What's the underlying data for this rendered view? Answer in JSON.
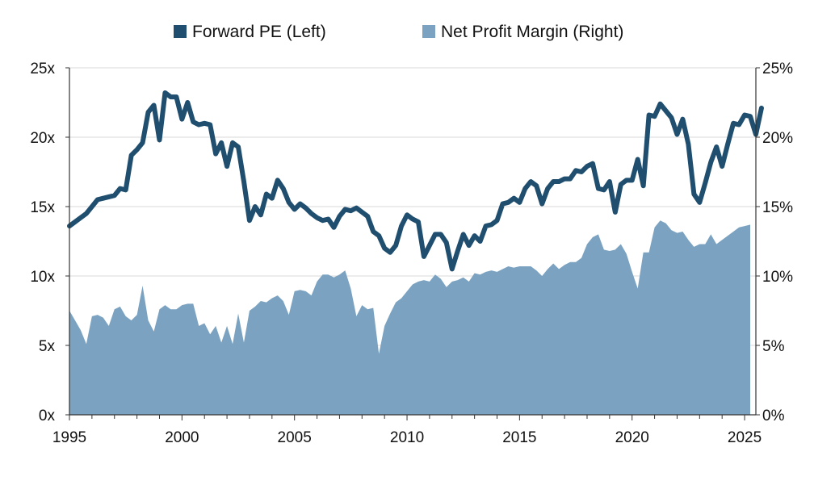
{
  "chart_data": {
    "type": "line+area",
    "title": "",
    "legend": {
      "placement": "top-center",
      "items": [
        {
          "label": "Forward PE (Left)",
          "color": "#1f4e6f",
          "kind": "line"
        },
        {
          "label": "Net Profit Margin (Right)",
          "color": "#7ba3c1",
          "kind": "area"
        }
      ]
    },
    "x_axis": {
      "range": [
        1995,
        2025.5
      ],
      "tick_labels": [
        "1995",
        "2000",
        "2005",
        "2010",
        "2015",
        "2020",
        "2025"
      ],
      "tick_values": [
        1995,
        2000,
        2005,
        2010,
        2015,
        2020,
        2025
      ],
      "minor_tick_values": [
        1996,
        1997,
        1998,
        1999,
        2001,
        2002,
        2003,
        2004,
        2006,
        2007,
        2008,
        2009,
        2011,
        2012,
        2013,
        2014,
        2016,
        2017,
        2018,
        2019,
        2021,
        2022,
        2023,
        2024
      ]
    },
    "y_left": {
      "range": [
        0,
        25
      ],
      "tick_values": [
        0,
        5,
        10,
        15,
        20,
        25
      ],
      "tick_labels": [
        "0x",
        "5x",
        "10x",
        "15x",
        "20x",
        "25x"
      ]
    },
    "y_right": {
      "range": [
        0,
        25
      ],
      "tick_values": [
        0,
        5,
        10,
        15,
        20,
        25
      ],
      "tick_labels": [
        "0%",
        "5%",
        "10%",
        "15%",
        "20%",
        "25%"
      ]
    },
    "gridlines": "horizontal",
    "series": [
      {
        "name": "Forward PE (Left)",
        "axis": "left",
        "type": "line",
        "color": "#1f4e6f",
        "points": [
          [
            1995.0,
            13.6
          ],
          [
            1995.25,
            13.9
          ],
          [
            1995.5,
            14.2
          ],
          [
            1995.75,
            14.5
          ],
          [
            1996.0,
            15.0
          ],
          [
            1996.25,
            15.5
          ],
          [
            1996.5,
            15.6
          ],
          [
            1996.75,
            15.7
          ],
          [
            1997.0,
            15.8
          ],
          [
            1997.25,
            16.3
          ],
          [
            1997.5,
            16.2
          ],
          [
            1997.75,
            18.7
          ],
          [
            1998.0,
            19.1
          ],
          [
            1998.25,
            19.6
          ],
          [
            1998.5,
            21.8
          ],
          [
            1998.75,
            22.3
          ],
          [
            1999.0,
            19.8
          ],
          [
            1999.25,
            23.2
          ],
          [
            1999.5,
            22.9
          ],
          [
            1999.75,
            22.9
          ],
          [
            2000.0,
            21.3
          ],
          [
            2000.25,
            22.5
          ],
          [
            2000.5,
            21.1
          ],
          [
            2000.75,
            20.9
          ],
          [
            2001.0,
            21.0
          ],
          [
            2001.25,
            20.9
          ],
          [
            2001.5,
            18.8
          ],
          [
            2001.75,
            19.6
          ],
          [
            2002.0,
            17.9
          ],
          [
            2002.25,
            19.6
          ],
          [
            2002.5,
            19.3
          ],
          [
            2002.75,
            16.8
          ],
          [
            2003.0,
            14.0
          ],
          [
            2003.25,
            15.0
          ],
          [
            2003.5,
            14.4
          ],
          [
            2003.75,
            15.9
          ],
          [
            2004.0,
            15.6
          ],
          [
            2004.25,
            16.9
          ],
          [
            2004.5,
            16.3
          ],
          [
            2004.75,
            15.3
          ],
          [
            2005.0,
            14.8
          ],
          [
            2005.25,
            15.2
          ],
          [
            2005.5,
            14.9
          ],
          [
            2005.75,
            14.5
          ],
          [
            2006.0,
            14.2
          ],
          [
            2006.25,
            14.0
          ],
          [
            2006.5,
            14.1
          ],
          [
            2006.75,
            13.5
          ],
          [
            2007.0,
            14.3
          ],
          [
            2007.25,
            14.8
          ],
          [
            2007.5,
            14.7
          ],
          [
            2007.75,
            14.9
          ],
          [
            2008.0,
            14.6
          ],
          [
            2008.25,
            14.3
          ],
          [
            2008.5,
            13.2
          ],
          [
            2008.75,
            12.9
          ],
          [
            2009.0,
            12.0
          ],
          [
            2009.25,
            11.7
          ],
          [
            2009.5,
            12.2
          ],
          [
            2009.75,
            13.6
          ],
          [
            2010.0,
            14.4
          ],
          [
            2010.25,
            14.1
          ],
          [
            2010.5,
            13.9
          ],
          [
            2010.75,
            11.4
          ],
          [
            2011.0,
            12.2
          ],
          [
            2011.25,
            13.0
          ],
          [
            2011.5,
            13.0
          ],
          [
            2011.75,
            12.4
          ],
          [
            2012.0,
            10.5
          ],
          [
            2012.25,
            11.8
          ],
          [
            2012.5,
            13.0
          ],
          [
            2012.75,
            12.2
          ],
          [
            2013.0,
            12.9
          ],
          [
            2013.25,
            12.5
          ],
          [
            2013.5,
            13.6
          ],
          [
            2013.75,
            13.7
          ],
          [
            2014.0,
            14.0
          ],
          [
            2014.25,
            15.2
          ],
          [
            2014.5,
            15.3
          ],
          [
            2014.75,
            15.6
          ],
          [
            2015.0,
            15.3
          ],
          [
            2015.25,
            16.3
          ],
          [
            2015.5,
            16.8
          ],
          [
            2015.75,
            16.5
          ],
          [
            2016.0,
            15.2
          ],
          [
            2016.25,
            16.3
          ],
          [
            2016.5,
            16.8
          ],
          [
            2016.75,
            16.8
          ],
          [
            2017.0,
            17.0
          ],
          [
            2017.25,
            17.0
          ],
          [
            2017.5,
            17.6
          ],
          [
            2017.75,
            17.5
          ],
          [
            2018.0,
            17.9
          ],
          [
            2018.25,
            18.1
          ],
          [
            2018.5,
            16.3
          ],
          [
            2018.75,
            16.2
          ],
          [
            2019.0,
            16.8
          ],
          [
            2019.25,
            14.6
          ],
          [
            2019.5,
            16.6
          ],
          [
            2019.75,
            16.9
          ],
          [
            2020.0,
            16.9
          ],
          [
            2020.25,
            18.4
          ],
          [
            2020.5,
            16.5
          ],
          [
            2020.75,
            21.6
          ],
          [
            2021.0,
            21.5
          ],
          [
            2021.25,
            22.4
          ],
          [
            2021.5,
            21.9
          ],
          [
            2021.75,
            21.4
          ],
          [
            2022.0,
            20.2
          ],
          [
            2022.25,
            21.3
          ],
          [
            2022.5,
            19.5
          ],
          [
            2022.75,
            15.9
          ],
          [
            2023.0,
            15.3
          ],
          [
            2023.25,
            16.7
          ],
          [
            2023.5,
            18.2
          ],
          [
            2023.75,
            19.3
          ],
          [
            2024.0,
            17.9
          ],
          [
            2024.25,
            19.5
          ],
          [
            2024.5,
            21.0
          ],
          [
            2024.75,
            20.9
          ],
          [
            2025.0,
            21.6
          ],
          [
            2025.25,
            21.5
          ],
          [
            2025.5,
            20.2
          ],
          [
            2025.75,
            22.1
          ]
        ]
      },
      {
        "name": "Net Profit Margin (Right)",
        "axis": "right",
        "type": "area",
        "color": "#7ba3c1",
        "points": [
          [
            1995.0,
            7.5
          ],
          [
            1995.25,
            6.8
          ],
          [
            1995.5,
            6.1
          ],
          [
            1995.75,
            5.1
          ],
          [
            1996.0,
            7.1
          ],
          [
            1996.25,
            7.2
          ],
          [
            1996.5,
            7.0
          ],
          [
            1996.75,
            6.4
          ],
          [
            1997.0,
            7.6
          ],
          [
            1997.25,
            7.8
          ],
          [
            1997.5,
            7.1
          ],
          [
            1997.75,
            6.8
          ],
          [
            1998.0,
            7.2
          ],
          [
            1998.25,
            9.3
          ],
          [
            1998.5,
            6.8
          ],
          [
            1998.75,
            6.0
          ],
          [
            1999.0,
            7.6
          ],
          [
            1999.25,
            7.9
          ],
          [
            1999.5,
            7.6
          ],
          [
            1999.75,
            7.6
          ],
          [
            2000.0,
            7.9
          ],
          [
            2000.25,
            8.0
          ],
          [
            2000.5,
            8.0
          ],
          [
            2000.75,
            6.4
          ],
          [
            2001.0,
            6.6
          ],
          [
            2001.25,
            5.8
          ],
          [
            2001.5,
            6.4
          ],
          [
            2001.75,
            5.2
          ],
          [
            2002.0,
            6.4
          ],
          [
            2002.25,
            5.1
          ],
          [
            2002.5,
            7.3
          ],
          [
            2002.75,
            5.2
          ],
          [
            2003.0,
            7.5
          ],
          [
            2003.25,
            7.8
          ],
          [
            2003.5,
            8.2
          ],
          [
            2003.75,
            8.1
          ],
          [
            2004.0,
            8.4
          ],
          [
            2004.25,
            8.6
          ],
          [
            2004.5,
            8.2
          ],
          [
            2004.75,
            7.2
          ],
          [
            2005.0,
            8.9
          ],
          [
            2005.25,
            9.0
          ],
          [
            2005.5,
            8.9
          ],
          [
            2005.75,
            8.6
          ],
          [
            2006.0,
            9.6
          ],
          [
            2006.25,
            10.1
          ],
          [
            2006.5,
            10.1
          ],
          [
            2006.75,
            9.9
          ],
          [
            2007.0,
            10.1
          ],
          [
            2007.25,
            10.4
          ],
          [
            2007.5,
            9.1
          ],
          [
            2007.75,
            7.1
          ],
          [
            2008.0,
            7.9
          ],
          [
            2008.25,
            7.6
          ],
          [
            2008.5,
            7.7
          ],
          [
            2008.75,
            4.4
          ],
          [
            2009.0,
            6.4
          ],
          [
            2009.25,
            7.3
          ],
          [
            2009.5,
            8.1
          ],
          [
            2009.75,
            8.4
          ],
          [
            2010.0,
            8.9
          ],
          [
            2010.25,
            9.4
          ],
          [
            2010.5,
            9.6
          ],
          [
            2010.75,
            9.7
          ],
          [
            2011.0,
            9.6
          ],
          [
            2011.25,
            10.1
          ],
          [
            2011.5,
            9.8
          ],
          [
            2011.75,
            9.2
          ],
          [
            2012.0,
            9.6
          ],
          [
            2012.25,
            9.7
          ],
          [
            2012.5,
            9.9
          ],
          [
            2012.75,
            9.6
          ],
          [
            2013.0,
            10.2
          ],
          [
            2013.25,
            10.1
          ],
          [
            2013.5,
            10.3
          ],
          [
            2013.75,
            10.4
          ],
          [
            2014.0,
            10.3
          ],
          [
            2014.25,
            10.5
          ],
          [
            2014.5,
            10.7
          ],
          [
            2014.75,
            10.6
          ],
          [
            2015.0,
            10.7
          ],
          [
            2015.25,
            10.7
          ],
          [
            2015.5,
            10.7
          ],
          [
            2015.75,
            10.4
          ],
          [
            2016.0,
            10.0
          ],
          [
            2016.25,
            10.5
          ],
          [
            2016.5,
            10.9
          ],
          [
            2016.75,
            10.5
          ],
          [
            2017.0,
            10.8
          ],
          [
            2017.25,
            11.0
          ],
          [
            2017.5,
            11.0
          ],
          [
            2017.75,
            11.3
          ],
          [
            2018.0,
            12.3
          ],
          [
            2018.25,
            12.8
          ],
          [
            2018.5,
            13.0
          ],
          [
            2018.75,
            11.9
          ],
          [
            2019.0,
            11.8
          ],
          [
            2019.25,
            11.9
          ],
          [
            2019.5,
            12.3
          ],
          [
            2019.75,
            11.6
          ],
          [
            2020.0,
            10.3
          ],
          [
            2020.25,
            9.1
          ],
          [
            2020.5,
            11.7
          ],
          [
            2020.75,
            11.7
          ],
          [
            2021.0,
            13.5
          ],
          [
            2021.25,
            14.0
          ],
          [
            2021.5,
            13.8
          ],
          [
            2021.75,
            13.3
          ],
          [
            2022.0,
            13.1
          ],
          [
            2022.25,
            13.2
          ],
          [
            2022.5,
            12.6
          ],
          [
            2022.75,
            12.1
          ],
          [
            2023.0,
            12.3
          ],
          [
            2023.25,
            12.3
          ],
          [
            2023.5,
            13.0
          ],
          [
            2023.75,
            12.3
          ],
          [
            2024.0,
            12.6
          ],
          [
            2024.25,
            12.9
          ],
          [
            2024.5,
            13.2
          ],
          [
            2024.75,
            13.5
          ],
          [
            2025.0,
            13.6
          ],
          [
            2025.25,
            13.7
          ]
        ]
      }
    ]
  }
}
